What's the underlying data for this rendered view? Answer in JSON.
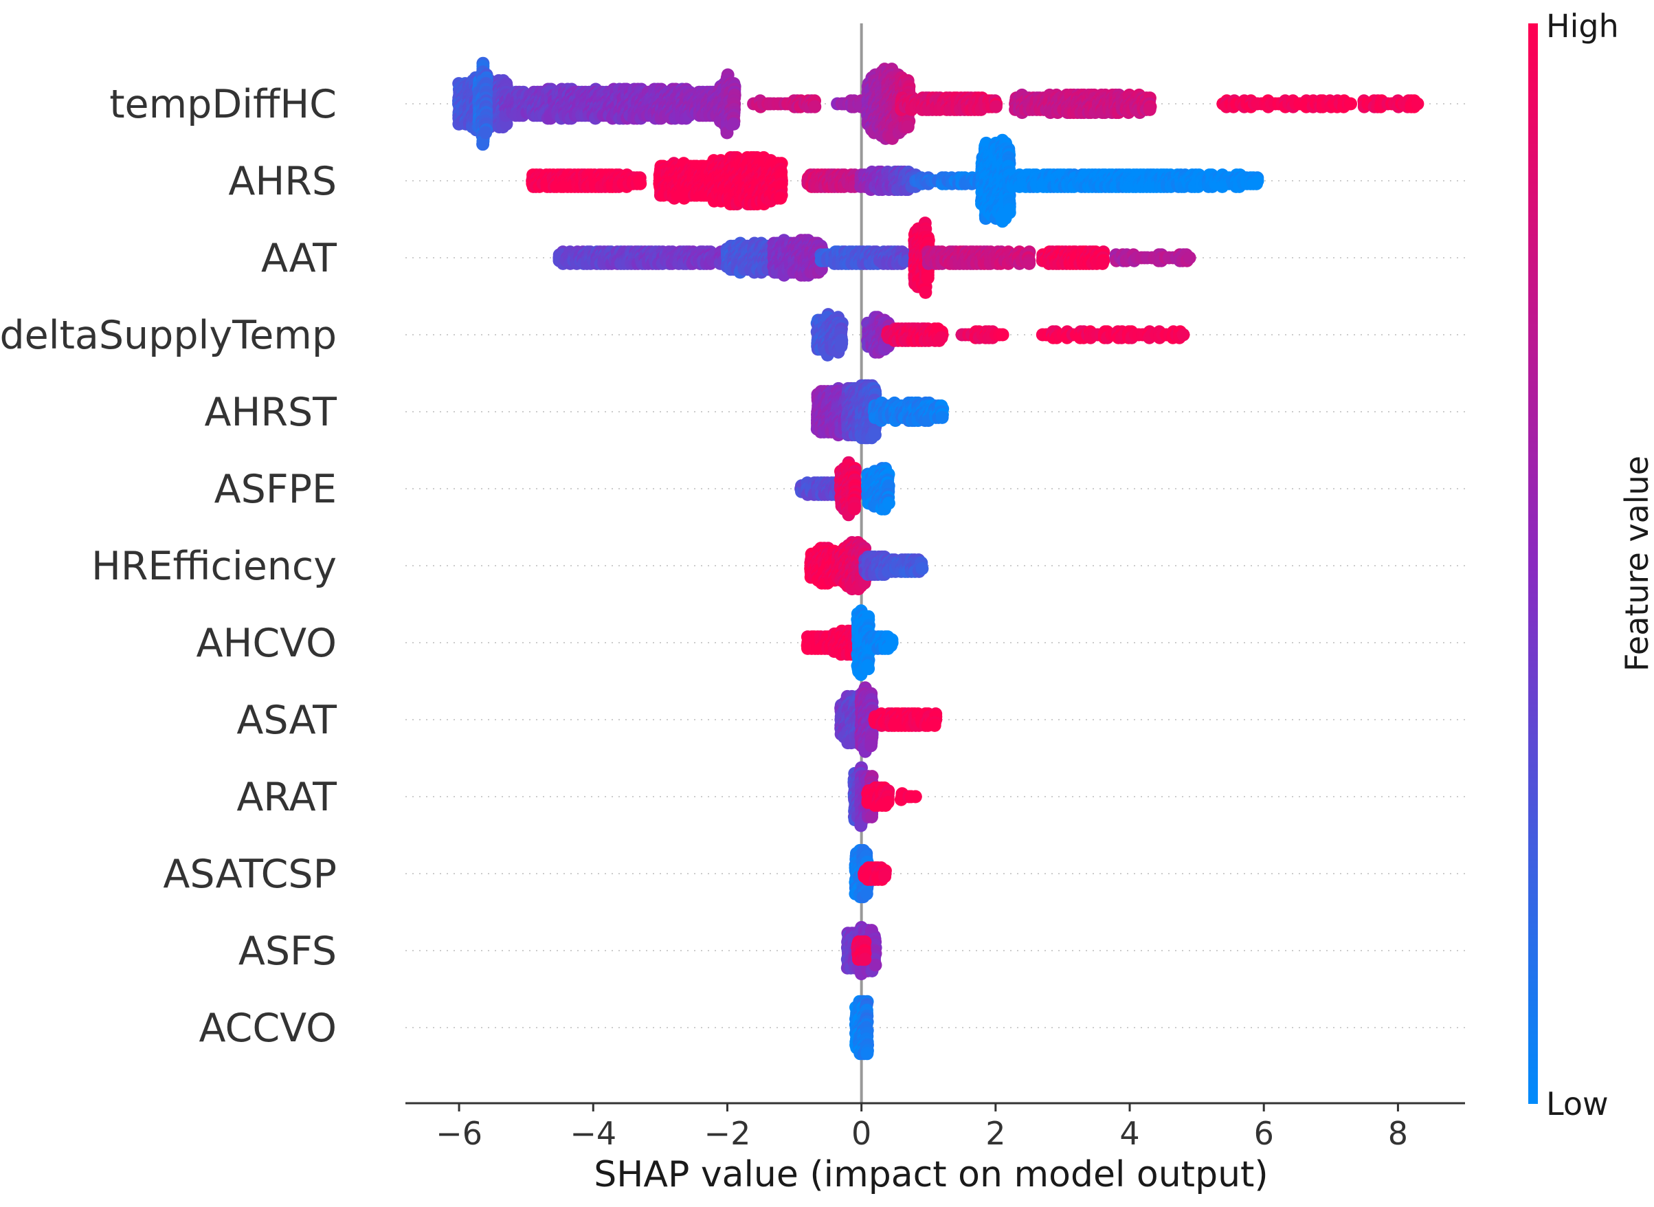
{
  "chart_data": {
    "type": "scatter",
    "subtype": "shap-beeswarm",
    "xlabel": "SHAP value (impact on model output)",
    "xlim": [
      -6.8,
      9.0
    ],
    "xticks": [
      -6,
      -4,
      -2,
      0,
      2,
      4,
      6,
      8
    ],
    "xtick_labels": [
      "−6",
      "−4",
      "−2",
      "0",
      "2",
      "4",
      "6",
      "8"
    ],
    "colorbar": {
      "title": "Feature value",
      "high_label": "High",
      "low_label": "Low",
      "high_color": "#ff0052",
      "mid_color": "#8a2ac0",
      "low_color": "#008bfb"
    },
    "features": [
      {
        "name": "tempDiffHC",
        "segments": [
          {
            "from": -6.0,
            "to": -5.3,
            "peak": 9,
            "v0": 0.25,
            "v1": 0.35
          },
          {
            "from": -5.7,
            "to": -5.6,
            "peak": 14,
            "v0": 0.15,
            "v1": 0.2
          },
          {
            "from": -5.3,
            "to": -2.0,
            "peak": 5,
            "v0": 0.4,
            "v1": 0.55
          },
          {
            "from": -2.1,
            "to": -1.9,
            "peak": 9,
            "v0": 0.55,
            "v1": 0.6
          },
          {
            "from": -1.6,
            "to": -0.7,
            "peak": 1,
            "v0": 0.75,
            "v1": 0.8
          },
          {
            "from": -0.35,
            "to": 0.0,
            "peak": 1,
            "v0": 0.55,
            "v1": 0.6
          },
          {
            "from": 0.1,
            "to": 0.7,
            "peak": 11,
            "v0": 0.55,
            "v1": 0.8
          },
          {
            "from": 0.6,
            "to": 2.0,
            "peak": 2,
            "v0": 0.85,
            "v1": 0.9
          },
          {
            "from": 2.3,
            "to": 4.3,
            "peak": 3,
            "v0": 0.75,
            "v1": 0.8
          },
          {
            "from": 5.4,
            "to": 7.3,
            "peak": 1,
            "v0": 0.95,
            "v1": 1.0
          },
          {
            "from": 7.5,
            "to": 8.3,
            "peak": 1,
            "v0": 0.95,
            "v1": 1.0
          }
        ]
      },
      {
        "name": "AHRS",
        "segments": [
          {
            "from": -4.9,
            "to": -3.3,
            "peak": 2,
            "v0": 1.0,
            "v1": 1.0
          },
          {
            "from": -3.0,
            "to": -2.2,
            "peak": 6,
            "v0": 1.0,
            "v1": 1.0
          },
          {
            "from": -2.2,
            "to": -1.2,
            "peak": 8,
            "v0": 1.0,
            "v1": 1.0
          },
          {
            "from": -0.8,
            "to": -0.1,
            "peak": 2,
            "v0": 0.85,
            "v1": 0.75
          },
          {
            "from": 0.0,
            "to": 0.8,
            "peak": 3,
            "v0": 0.55,
            "v1": 0.3
          },
          {
            "from": 0.8,
            "to": 1.8,
            "peak": 1,
            "v0": 0.15,
            "v1": 0.05
          },
          {
            "from": 1.8,
            "to": 2.2,
            "peak": 14,
            "v0": 0.0,
            "v1": 0.0
          },
          {
            "from": 2.2,
            "to": 5.9,
            "peak": 2,
            "v0": 0.0,
            "v1": 0.0
          }
        ]
      },
      {
        "name": "AAT",
        "segments": [
          {
            "from": -4.5,
            "to": -2.0,
            "peak": 2,
            "v0": 0.35,
            "v1": 0.45
          },
          {
            "from": -2.0,
            "to": -1.3,
            "peak": 5,
            "v0": 0.25,
            "v1": 0.3
          },
          {
            "from": -1.3,
            "to": -0.6,
            "peak": 6,
            "v0": 0.45,
            "v1": 0.55
          },
          {
            "from": -0.6,
            "to": 0.7,
            "peak": 2,
            "v0": 0.2,
            "v1": 0.35
          },
          {
            "from": 0.8,
            "to": 1.0,
            "peak": 12,
            "v0": 0.95,
            "v1": 1.0
          },
          {
            "from": 1.0,
            "to": 2.5,
            "peak": 2,
            "v0": 0.75,
            "v1": 0.8
          },
          {
            "from": 2.7,
            "to": 3.6,
            "peak": 2,
            "v0": 0.95,
            "v1": 1.0
          },
          {
            "from": 3.8,
            "to": 4.9,
            "peak": 1,
            "v0": 0.65,
            "v1": 0.7
          }
        ]
      },
      {
        "name": "deltaSupplyTemp",
        "segments": [
          {
            "from": -0.65,
            "to": -0.3,
            "peak": 7,
            "v0": 0.25,
            "v1": 0.3
          },
          {
            "from": 0.1,
            "to": 0.4,
            "peak": 6,
            "v0": 0.45,
            "v1": 0.55
          },
          {
            "from": 0.4,
            "to": 1.2,
            "peak": 2,
            "v0": 0.9,
            "v1": 1.0
          },
          {
            "from": 1.5,
            "to": 2.1,
            "peak": 1,
            "v0": 0.9,
            "v1": 1.0
          },
          {
            "from": 2.7,
            "to": 4.8,
            "peak": 1,
            "v0": 0.95,
            "v1": 1.0
          }
        ]
      },
      {
        "name": "AHRST",
        "segments": [
          {
            "from": -0.65,
            "to": -0.2,
            "peak": 8,
            "v0": 0.55,
            "v1": 0.45
          },
          {
            "from": -0.2,
            "to": 0.2,
            "peak": 10,
            "v0": 0.35,
            "v1": 0.25
          },
          {
            "from": 0.2,
            "to": 1.2,
            "peak": 3,
            "v0": 0.1,
            "v1": 0.05
          }
        ]
      },
      {
        "name": "ASFPE",
        "segments": [
          {
            "from": -0.9,
            "to": -0.3,
            "peak": 2,
            "v0": 0.3,
            "v1": 0.35
          },
          {
            "from": -0.3,
            "to": -0.1,
            "peak": 8,
            "v0": 0.9,
            "v1": 0.95
          },
          {
            "from": 0.1,
            "to": 0.4,
            "peak": 7,
            "v0": 0.05,
            "v1": 0.05
          }
        ]
      },
      {
        "name": "HREfficiency",
        "segments": [
          {
            "from": -0.75,
            "to": -0.3,
            "peak": 6,
            "v0": 1.0,
            "v1": 0.95
          },
          {
            "from": -0.3,
            "to": 0.05,
            "peak": 8,
            "v0": 0.95,
            "v1": 0.85
          },
          {
            "from": 0.05,
            "to": 0.5,
            "peak": 3,
            "v0": 0.35,
            "v1": 0.25
          },
          {
            "from": 0.5,
            "to": 0.9,
            "peak": 2,
            "v0": 0.25,
            "v1": 0.25
          }
        ]
      },
      {
        "name": "AHCVO",
        "segments": [
          {
            "from": -0.8,
            "to": -0.4,
            "peak": 2,
            "v0": 1.0,
            "v1": 1.0
          },
          {
            "from": -0.4,
            "to": -0.1,
            "peak": 4,
            "v0": 1.0,
            "v1": 1.0
          },
          {
            "from": -0.05,
            "to": 0.1,
            "peak": 12,
            "v0": 0.0,
            "v1": 0.0
          },
          {
            "from": 0.1,
            "to": 0.45,
            "peak": 2,
            "v0": 0.05,
            "v1": 0.0
          }
        ]
      },
      {
        "name": "ASAT",
        "segments": [
          {
            "from": -0.3,
            "to": 0.15,
            "peak": 8,
            "v0": 0.4,
            "v1": 0.3
          },
          {
            "from": 0.0,
            "to": 0.15,
            "peak": 11,
            "v0": 0.55,
            "v1": 0.5
          },
          {
            "from": 0.2,
            "to": 1.1,
            "peak": 2,
            "v0": 1.0,
            "v1": 1.0
          }
        ]
      },
      {
        "name": "ARAT",
        "segments": [
          {
            "from": -0.1,
            "to": 0.15,
            "peak": 10,
            "v0": 0.3,
            "v1": 0.6
          },
          {
            "from": 0.1,
            "to": 0.4,
            "peak": 3,
            "v0": 1.0,
            "v1": 1.0
          },
          {
            "from": 0.6,
            "to": 0.8,
            "peak": 1,
            "v0": 1.0,
            "v1": 1.0
          }
        ]
      },
      {
        "name": "ASATCSP",
        "segments": [
          {
            "from": -0.08,
            "to": 0.08,
            "peak": 10,
            "v0": 0.05,
            "v1": 0.1
          },
          {
            "from": 0.05,
            "to": 0.35,
            "peak": 2,
            "v0": 1.0,
            "v1": 1.0
          }
        ]
      },
      {
        "name": "ASFS",
        "segments": [
          {
            "from": -0.2,
            "to": 0.2,
            "peak": 8,
            "v0": 0.4,
            "v1": 0.5
          },
          {
            "from": -0.05,
            "to": 0.05,
            "peak": 4,
            "v0": 0.95,
            "v1": 1.0
          }
        ]
      },
      {
        "name": "ACCVO",
        "segments": [
          {
            "from": -0.08,
            "to": 0.08,
            "peak": 12,
            "v0": 0.0,
            "v1": 0.1
          }
        ]
      }
    ]
  }
}
